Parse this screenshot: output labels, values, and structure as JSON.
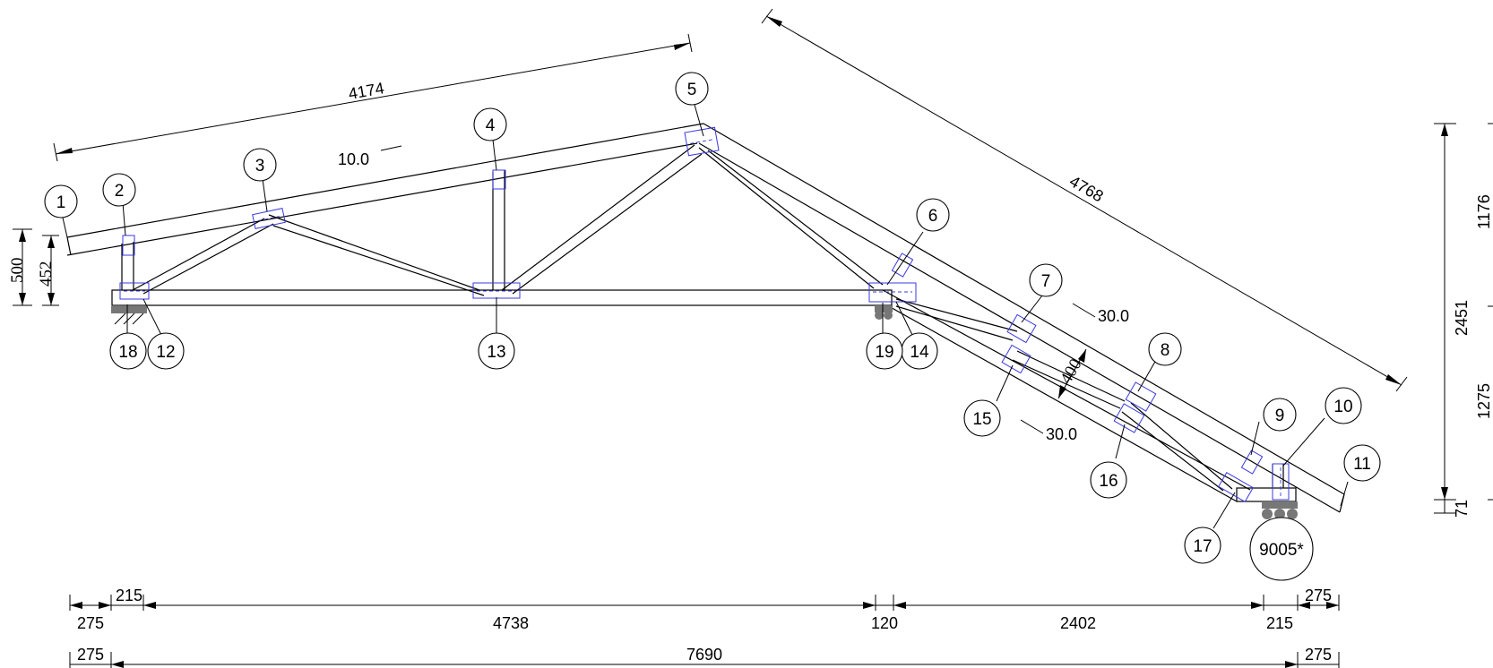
{
  "diagram": {
    "node_labels": [
      "1",
      "2",
      "3",
      "4",
      "5",
      "6",
      "7",
      "8",
      "9",
      "10",
      "11",
      "12",
      "13",
      "14",
      "15",
      "16",
      "17",
      "18",
      "19"
    ],
    "bearing_label": "9005*",
    "top_chord_left_length": "4174",
    "top_chord_right_length": "4768",
    "pitch_left": "10.0",
    "pitch_right_upper": "30.0",
    "pitch_right_lower": "30.0",
    "heel_height_outer": "500",
    "heel_height_inner": "452",
    "chord_depth_right": "400",
    "right_heights": [
      "1176",
      "2451",
      "1275",
      "71"
    ],
    "bottom_dims_row1": [
      "275",
      "215",
      "4738",
      "120",
      "2402",
      "215",
      "275"
    ],
    "bottom_dims_row2": [
      "275",
      "7690",
      "275"
    ],
    "colors": {
      "line": "#000000",
      "plate": "#3a3ae0",
      "bearing": "#777777"
    }
  }
}
